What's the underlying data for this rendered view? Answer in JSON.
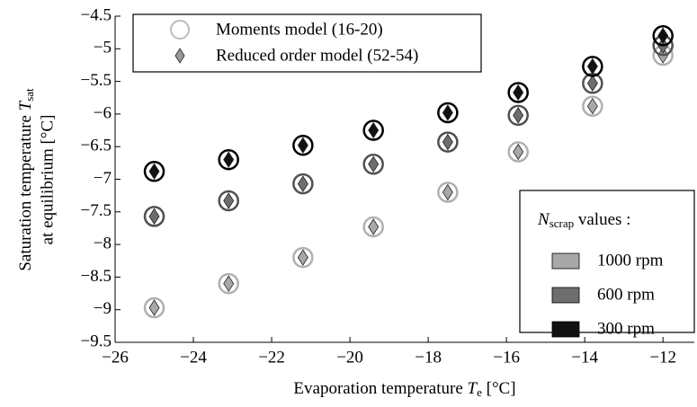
{
  "chart_data": {
    "type": "scatter",
    "x_label": {
      "text": "Evaporation temperature ",
      "symbol": "T",
      "sub": "e",
      "unit": " [°C]"
    },
    "y_label": {
      "line1": "Saturation temperature ",
      "symbol": "T",
      "sub": "sat",
      "line2": "at equilibrium [°C]"
    },
    "model_legend": [
      "Moments model (16-20)",
      "Reduced order model (52-54)"
    ],
    "speed_legend_title": {
      "symbol": "N",
      "sub": "scrap",
      "text": " values :"
    },
    "x": [
      -25,
      -23.1,
      -21.2,
      -19.4,
      -17.5,
      -15.7,
      -13.8,
      -12
    ],
    "series": [
      {
        "name": "1000 rpm",
        "color": "#b0b0b0",
        "marker_color": "#a8a8a8",
        "values": [
          -8.97,
          -8.6,
          -8.2,
          -7.73,
          -7.2,
          -6.58,
          -5.88,
          -5.1
        ]
      },
      {
        "name": "600 rpm",
        "color": "#505050",
        "marker_color": "#6e6e6e",
        "values": [
          -7.57,
          -7.33,
          -7.07,
          -6.77,
          -6.43,
          -6.02,
          -5.53,
          -4.95
        ]
      },
      {
        "name": "300 rpm",
        "color": "#000000",
        "marker_color": "#111111",
        "values": [
          -6.88,
          -6.7,
          -6.48,
          -6.25,
          -5.98,
          -5.67,
          -5.27,
          -4.8
        ]
      }
    ],
    "xlim": [
      -26,
      -11.2
    ],
    "xticks": [
      {
        "value": -26,
        "label": "−26"
      },
      {
        "value": -24,
        "label": "−24"
      },
      {
        "value": -22,
        "label": "−22"
      },
      {
        "value": -20,
        "label": "−20"
      },
      {
        "value": -18,
        "label": "−18"
      },
      {
        "value": -16,
        "label": "−16"
      },
      {
        "value": -14,
        "label": "−14"
      },
      {
        "value": -12,
        "label": "−12"
      }
    ],
    "ylim": [
      -9.5,
      -4.5
    ],
    "yticks": [
      {
        "value": -9.5,
        "label": "−9.5"
      },
      {
        "value": -9,
        "label": "−9"
      },
      {
        "value": -8.5,
        "label": "−8.5"
      },
      {
        "value": -8,
        "label": "−8"
      },
      {
        "value": -7.5,
        "label": "−7.5"
      },
      {
        "value": -7,
        "label": "−7"
      },
      {
        "value": -6.5,
        "label": "−6.5"
      },
      {
        "value": -6,
        "label": "−6"
      },
      {
        "value": -5.5,
        "label": "−5.5"
      },
      {
        "value": -5,
        "label": "−5"
      },
      {
        "value": -4.5,
        "label": "−4.5"
      }
    ]
  }
}
